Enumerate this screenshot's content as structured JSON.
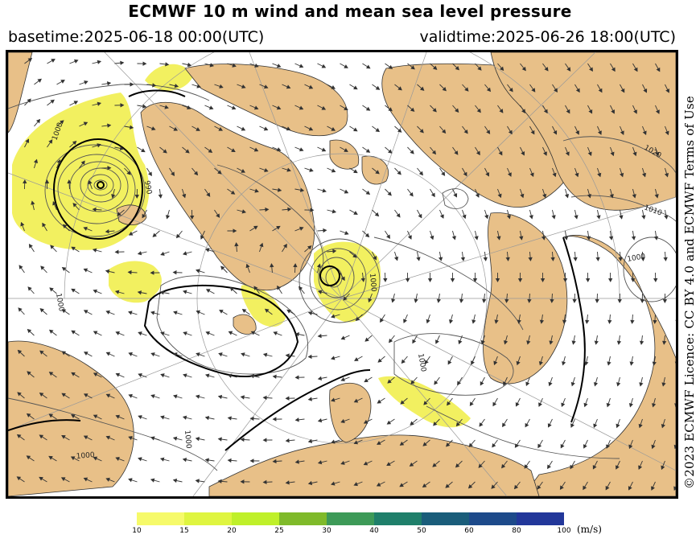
{
  "header": {
    "title": "ECMWF 10 m wind and mean sea level pressure",
    "basetime": "basetime:2025-06-18 00:00(UTC)",
    "validtime": "validtime:2025-06-26 18:00(UTC)"
  },
  "credit": "©2023 ECMWF Licence: CC BY 4.0 and ECMWF Terms of Use",
  "legend": {
    "unit": "(m/s)",
    "ticks": [
      "10",
      "15",
      "20",
      "25",
      "30",
      "40",
      "50",
      "60",
      "80",
      "100"
    ],
    "colors": [
      "#f6fa6a",
      "#dff540",
      "#bff02a",
      "#7fba2a",
      "#3d9a58",
      "#1f7f6a",
      "#1a5d7a",
      "#1d4a8a",
      "#22379a",
      "#2a2fa8"
    ]
  },
  "map": {
    "colors": {
      "land": "#e8c088",
      "sea": "#ffffff",
      "wind_highlight": "#f2f060",
      "isobar": "#555555",
      "isobar_bold": "#000000",
      "graticule": "#999999"
    },
    "isobar_labels": [
      "1000",
      "990",
      "1000",
      "1000",
      "1000",
      "1020",
      "1010",
      "1000",
      "1000",
      "1000"
    ]
  }
}
